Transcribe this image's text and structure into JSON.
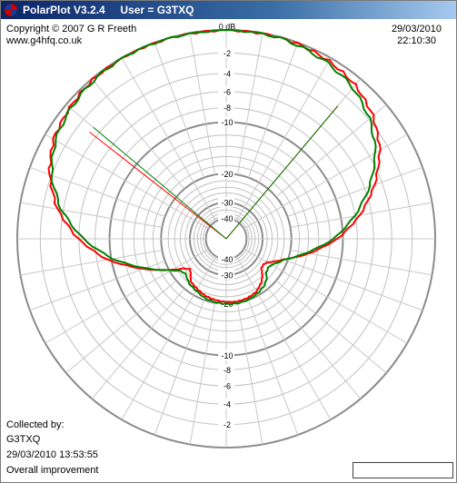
{
  "window": {
    "title": "PolarPlot V3.2.4     User = G3TXQ"
  },
  "header": {
    "copyright": "Copyright © 2007 G R Freeth",
    "website": "www.g4hfq.co.uk",
    "date": "29/03/2010",
    "time": "22:10:30"
  },
  "footer": {
    "collected_label": "Collected by:",
    "collector": "G3TXQ",
    "collected_time": "29/03/2010 13:53:55",
    "description": "Overall improvement"
  },
  "chart_data": {
    "type": "polar",
    "title": "",
    "radial_unit": "dB",
    "radial_ticks": [
      0,
      -2,
      -4,
      -6,
      -8,
      -10,
      -20,
      -30,
      -40
    ],
    "radial_tick_labels": [
      "0 dB",
      "-2",
      "-4",
      "-6",
      "-8",
      "-10",
      "-20",
      "-30",
      "-40"
    ],
    "angle_step_deg": 10,
    "colors": {
      "series_a": "#ff0000",
      "series_b": "#008000",
      "grid": "#a0a0a0"
    },
    "series": [
      {
        "color": "#ff0000",
        "angles_deg": [
          0,
          10,
          20,
          30,
          40,
          50,
          60,
          70,
          80,
          90,
          100,
          110,
          120,
          125,
          130,
          135,
          140,
          150,
          160,
          170,
          180,
          190,
          200,
          210,
          220,
          225,
          230,
          235,
          240,
          250,
          260,
          270,
          280,
          290,
          300,
          310,
          320,
          330,
          340,
          350
        ],
        "values_db": [
          0,
          0,
          -0.1,
          -0.3,
          -0.7,
          -1.5,
          -2.8,
          -4.8,
          -7.4,
          -10.8,
          -15.6,
          -21.2,
          -25.5,
          -26.3,
          -26.0,
          -24.2,
          -22.8,
          -21.2,
          -20.6,
          -20.4,
          -20.5,
          -20.8,
          -21.2,
          -22.0,
          -22.8,
          -24.5,
          -25.5,
          -24.0,
          -20.8,
          -14.8,
          -9.4,
          -5.9,
          -3.4,
          -1.8,
          -0.8,
          -0.4,
          -0.1,
          0,
          0,
          0
        ],
        "beamwidth_deg": [
          -52,
          40
        ]
      },
      {
        "color": "#008000",
        "angles_deg": [
          0,
          10,
          20,
          30,
          40,
          50,
          60,
          70,
          80,
          90,
          100,
          110,
          120,
          125,
          130,
          135,
          140,
          150,
          160,
          170,
          180,
          190,
          200,
          210,
          220,
          225,
          230,
          235,
          240,
          250,
          260,
          270,
          280,
          290,
          300,
          310,
          320,
          330,
          340,
          350
        ],
        "values_db": [
          0,
          0,
          -0.2,
          -0.5,
          -1.0,
          -1.9,
          -3.3,
          -5.4,
          -8.1,
          -11.4,
          -16.2,
          -21.0,
          -23.8,
          -24.2,
          -23.8,
          -22.3,
          -21.4,
          -20.6,
          -20.1,
          -19.9,
          -20.0,
          -20.2,
          -20.6,
          -21.4,
          -22.0,
          -22.8,
          -23.3,
          -22.6,
          -20.6,
          -15.2,
          -10.2,
          -6.5,
          -3.8,
          -2.0,
          -1.0,
          -0.5,
          -0.2,
          0,
          0,
          0
        ],
        "beamwidth_deg": [
          -50,
          40
        ]
      }
    ]
  }
}
